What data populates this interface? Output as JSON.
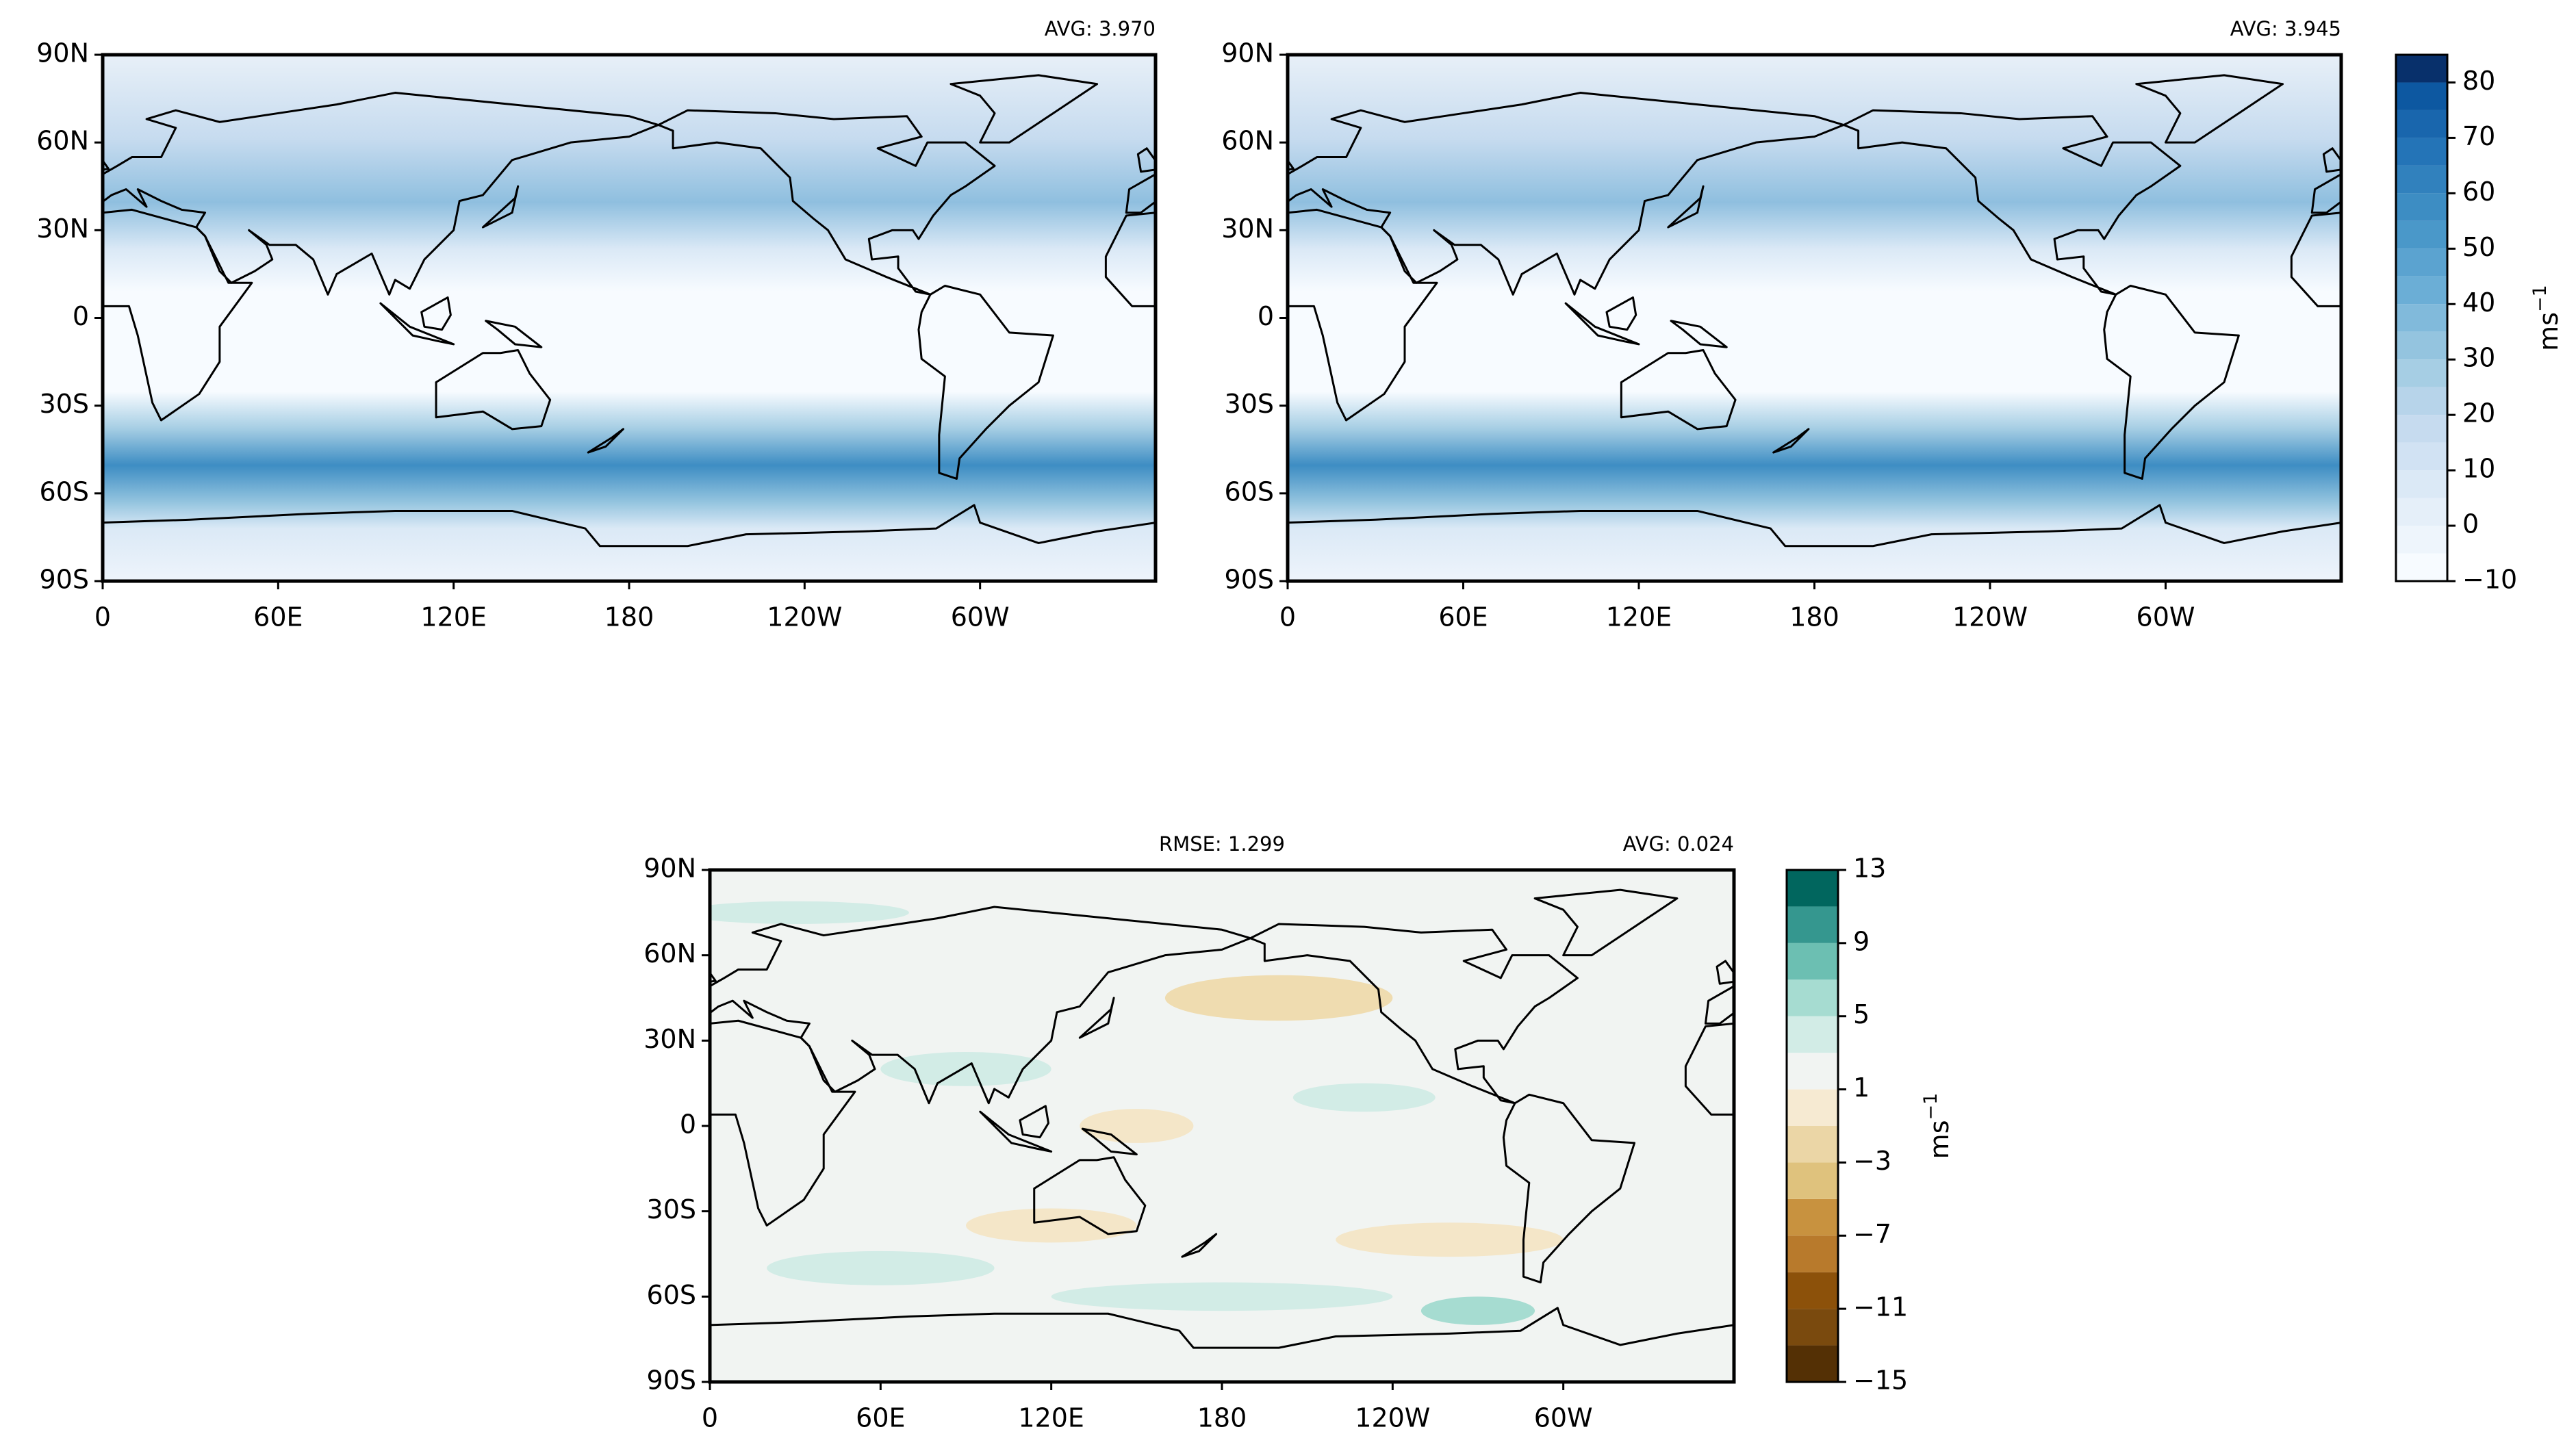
{
  "panels": [
    {
      "avg": "AVG: 3.970",
      "xlim": [
        0,
        360
      ],
      "ylim": [
        -90,
        90
      ],
      "xticks": [
        0,
        {
          "value": 60,
          "label": "60E"
        },
        {
          "value": 120,
          "label": "120E"
        },
        180,
        {
          "value": 240,
          "label": "120W"
        },
        {
          "value": 300,
          "label": "60W"
        }
      ],
      "yticks": [
        {
          "value": -90,
          "label": "90S"
        },
        {
          "value": -60,
          "label": "60S"
        },
        {
          "value": -30,
          "label": "30S"
        },
        0,
        {
          "value": 30,
          "label": "30N"
        },
        {
          "value": 60,
          "label": "60N"
        },
        {
          "value": 90,
          "label": "90N"
        }
      ]
    },
    {
      "avg": "AVG: 3.945",
      "xlim": [
        0,
        360
      ],
      "ylim": [
        -90,
        90
      ],
      "xticks": [
        0,
        {
          "value": 60,
          "label": "60E"
        },
        {
          "value": 120,
          "label": "120E"
        },
        180,
        {
          "value": 240,
          "label": "120W"
        },
        {
          "value": 300,
          "label": "60W"
        }
      ],
      "yticks": [
        {
          "value": -90,
          "label": "90S"
        },
        {
          "value": -60,
          "label": "60S"
        },
        {
          "value": -30,
          "label": "30S"
        },
        0,
        {
          "value": 30,
          "label": "30N"
        },
        {
          "value": 60,
          "label": "60N"
        },
        {
          "value": 90,
          "label": "90N"
        }
      ]
    },
    {
      "rmse": "RMSE: 1.299",
      "avg": "AVG: 0.024",
      "xlim": [
        0,
        360
      ],
      "ylim": [
        -90,
        90
      ],
      "xticks": [
        0,
        {
          "value": 60,
          "label": "60E"
        },
        {
          "value": 120,
          "label": "120E"
        },
        180,
        {
          "value": 240,
          "label": "120W"
        },
        {
          "value": 300,
          "label": "60W"
        }
      ],
      "yticks": [
        {
          "value": -90,
          "label": "90S"
        },
        {
          "value": -60,
          "label": "60S"
        },
        {
          "value": -30,
          "label": "30S"
        },
        0,
        {
          "value": 30,
          "label": "30N"
        },
        {
          "value": 60,
          "label": "60N"
        },
        {
          "value": 90,
          "label": "90N"
        }
      ]
    }
  ],
  "colorbars": [
    {
      "unit": {
        "base": "ms",
        "exp": "−1"
      },
      "levels": [
        -10,
        -5,
        0,
        5,
        10,
        15,
        20,
        25,
        30,
        35,
        40,
        45,
        50,
        55,
        60,
        65,
        70,
        75,
        80,
        85
      ],
      "colors": [
        "#f7fbff",
        "#eef5fc",
        "#e5eff9",
        "#dbe9f6",
        "#d1e2f3",
        "#c6dbef",
        "#b7d4ea",
        "#a6cee4",
        "#94c4df",
        "#81badb",
        "#6baed6",
        "#5ba3d0",
        "#4a98c9",
        "#3d8dc3",
        "#3181bd",
        "#2474b7",
        "#1966ad",
        "#0d58a1",
        "#08306b"
      ],
      "ticks": [
        {
          "value": -10,
          "label": "−10"
        },
        0,
        10,
        20,
        30,
        40,
        50,
        60,
        70,
        80
      ]
    },
    {
      "unit": {
        "base": "ms",
        "exp": "−1"
      },
      "levels": [
        -15,
        -13,
        -11,
        -9,
        -7,
        -5,
        -3,
        -1,
        1,
        3,
        5,
        7,
        9,
        11,
        13
      ],
      "colors": [
        "#543005",
        "#7a4a0e",
        "#8c510a",
        "#b87a2c",
        "#c8923f",
        "#dfc27d",
        "#ebd6a6",
        "#f6ead2",
        "#f1f4f2",
        "#d2ece6",
        "#a6dcd1",
        "#6cbfb2",
        "#35978f",
        "#01665e"
      ],
      "ticks": [
        {
          "value": -15,
          "label": "−15"
        },
        {
          "value": -11,
          "label": "−11"
        },
        {
          "value": -7,
          "label": "−7"
        },
        {
          "value": -3,
          "label": "−3"
        },
        1,
        5,
        9,
        13
      ]
    }
  ]
}
